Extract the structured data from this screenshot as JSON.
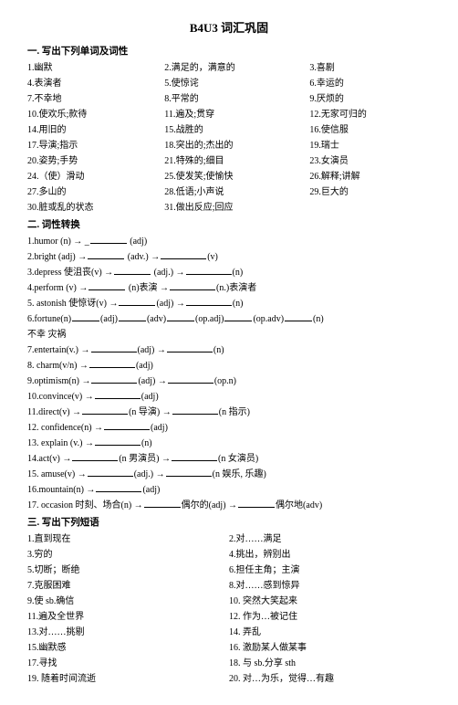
{
  "title": "B4U3 词汇巩固",
  "section1": {
    "heading": "一. 写出下列单词及词性",
    "rows": [
      [
        "1.幽默",
        "2.满足的，满意的",
        "3.喜剧"
      ],
      [
        "4.表演者",
        "5.使惊诧",
        "6.幸运的"
      ],
      [
        "7.不幸地",
        "8.平常的",
        "9.厌烦的"
      ],
      [
        "10.使欢乐;款待",
        "11.遍及;贯穿",
        "12.无家可归的"
      ],
      [
        "14.用旧的",
        "15.战胜的",
        "16.使信服"
      ],
      [
        "17.导演;指示",
        "18.突出的;杰出的",
        "19.瑞士"
      ],
      [
        "20.姿势;手势",
        "21.特殊的;细目",
        "23.女演员"
      ],
      [
        "24.（使）滑动",
        "25.使发笑;使愉快",
        "26.解释;讲解"
      ],
      [
        "27.多山的",
        "28.低语;小声说",
        "29.巨大的"
      ],
      [
        "30.脏或乱的状态",
        "31.做出反应;回应",
        ""
      ]
    ]
  },
  "section2": {
    "heading": "二. 词性转换",
    "lines": {
      "l1a": "1.humor (n) →",
      "l1b": "(adj)",
      "l2a": "2.bright (adj) →",
      "l2b": "(adv.) →",
      "l2c": "(v)",
      "l3a": "3.depress 使沮丧(v) →",
      "l3b": "(adj.) →",
      "l3c": "(n)",
      "l4a": "4.perform (v) →",
      "l4b": "(n)表演 →",
      "l4c": "(n.)表演者",
      "l5a": "5. astonish 使惊讶(v) →",
      "l5b": "(adj) →",
      "l5c": "(n)",
      "l6a": "6.fortune(n)",
      "l6b": "(adj)",
      "l6c": "(adv)",
      "l6d": "(op.adj)",
      "l6e": "(op.adv)",
      "l6f": "(n)",
      "l6g": "不幸 灾祸",
      "l7a": "7.entertain(v.) →",
      "l7b": "(adj) →",
      "l7c": "(n)",
      "l8a": "8. charm(v/n) →",
      "l8b": "(adj)",
      "l9a": "9.optimism(n) →",
      "l9b": "(adj) →",
      "l9c": "(op.n)",
      "l10a": "10.convince(v) →",
      "l10b": "(adj)",
      "l11a": "11.direct(v) →",
      "l11b": "(n 导演) →",
      "l11c": "(n 指示)",
      "l12a": "12. confidence(n) →",
      "l12b": "(adj)",
      "l13a": "13. explain (v.) →",
      "l13b": "(n)",
      "l14a": "14.act(v) →",
      "l14b": "(n 男演员) →",
      "l14c": "(n 女演员)",
      "l15a": "15. amuse(v) →",
      "l15b": "(adj.) →",
      "l15c": "(n 娱乐, 乐趣)",
      "l16a": "16.mountain(n) →",
      "l16b": "(adj)",
      "l17a": "17. occasion 时刻、场合(n) →",
      "l17b": "偶尔的(adj) →",
      "l17c": "偶尔地(adv)"
    }
  },
  "section3": {
    "heading": "三. 写出下列短语",
    "rows": [
      [
        "1.直到现在",
        "2.对……满足"
      ],
      [
        "3.穷的",
        "4.挑出，辨别出"
      ],
      [
        "5.切断；断绝",
        "6.担任主角；主演"
      ],
      [
        "7.克服困难",
        "8.对……感到惊异"
      ],
      [
        "9.使 sb.确信",
        "10. 突然大笑起来"
      ],
      [
        "11.遍及全世界",
        "12. 作为…被记住"
      ],
      [
        "13.对……挑剔",
        "14. 弄乱"
      ],
      [
        "15.幽默感",
        "16. 激励某人做某事"
      ],
      [
        "17.寻找",
        "18. 与 sb.分享 sth"
      ],
      [
        "19. 随着时间流逝",
        "20. 对…为乐，觉得…有趣"
      ]
    ]
  }
}
